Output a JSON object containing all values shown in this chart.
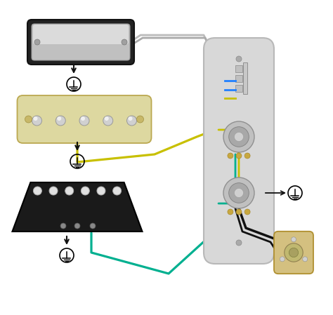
{
  "bg_color": "#ffffff",
  "wire_yellow": "#c8c000",
  "wire_green": "#00b090",
  "wire_blue": "#2080ff",
  "wire_black": "#111111",
  "wire_white": "#bbbbbb",
  "wire_gray": "#aaaaaa"
}
